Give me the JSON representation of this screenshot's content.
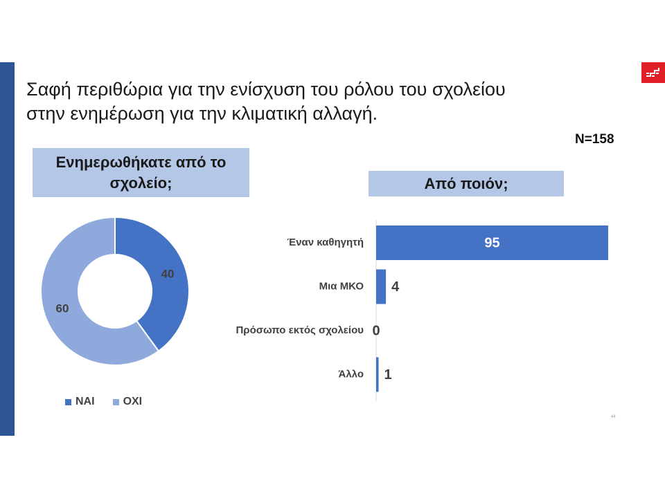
{
  "slide": {
    "title_line1": "Σαφή περιθώρια για την ενίσχυση του ρόλου του σχολείου",
    "title_line2": "στην ενημέρωση για την κλιματική αλλαγή.",
    "n_label": "N=158",
    "page_number": "44"
  },
  "colors": {
    "primary": "#4472c4",
    "secondary": "#8fa9dc",
    "header_box": "#b4c7e7",
    "sidebar": "#2f5597",
    "logo": "#e01f26"
  },
  "chart_data": [
    {
      "type": "pie",
      "variant": "donut",
      "title_line1": "Ενημερωθήκατε από το",
      "title_line2": "σχολείο;",
      "categories": [
        "ΝΑΙ",
        "ΟΧΙ"
      ],
      "values": [
        40,
        60
      ],
      "colors": [
        "#4472c4",
        "#8fa9dc"
      ],
      "legend": "bottom"
    },
    {
      "type": "bar",
      "orientation": "horizontal",
      "title": "Από ποιόν;",
      "categories": [
        "Έναν καθηγητή",
        "Μια ΜΚΟ",
        "Πρόσωπο εκτός σχολείου",
        "Άλλο"
      ],
      "values": [
        95,
        4,
        0,
        1
      ],
      "xlim": [
        0,
        95
      ],
      "color": "#4472c4"
    }
  ]
}
